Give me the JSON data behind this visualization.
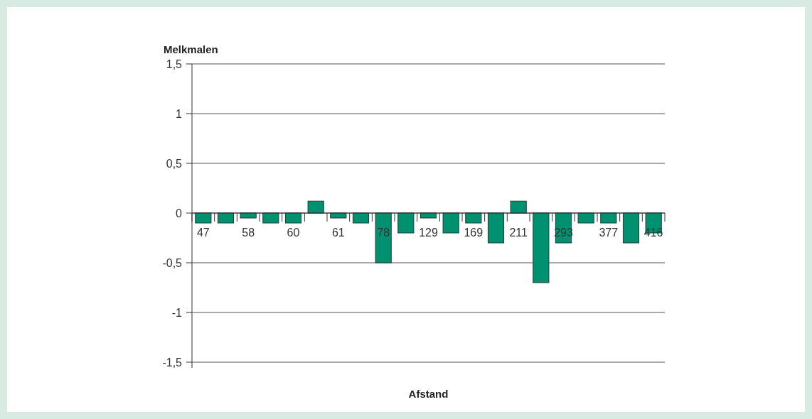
{
  "chart_data": {
    "type": "bar",
    "ylabel": "Melkmalen",
    "xlabel": "Afstand",
    "categories": [
      "47",
      null,
      "58",
      null,
      "60",
      null,
      "61",
      null,
      "78",
      null,
      "129",
      null,
      "169",
      null,
      "211",
      null,
      "293",
      null,
      "377",
      null,
      "416"
    ],
    "values": [
      -0.1,
      -0.1,
      -0.05,
      -0.1,
      -0.1,
      0.12,
      -0.05,
      -0.1,
      -0.5,
      -0.2,
      -0.05,
      -0.2,
      -0.1,
      -0.3,
      0.12,
      -0.7,
      -0.3,
      -0.1,
      -0.1,
      -0.3,
      -0.2
    ],
    "color": "#009270",
    "ylim": [
      -1.5,
      1.5
    ],
    "yticks": [
      {
        "value": -1.5,
        "label": "-1,5"
      },
      {
        "value": -1,
        "label": "-1"
      },
      {
        "value": -0.5,
        "label": "-0,5"
      },
      {
        "value": 0,
        "label": "0"
      },
      {
        "value": 0.5,
        "label": "0,5"
      },
      {
        "value": 1,
        "label": "1"
      },
      {
        "value": 1.5,
        "label": "1,5"
      }
    ],
    "grid": "y"
  }
}
